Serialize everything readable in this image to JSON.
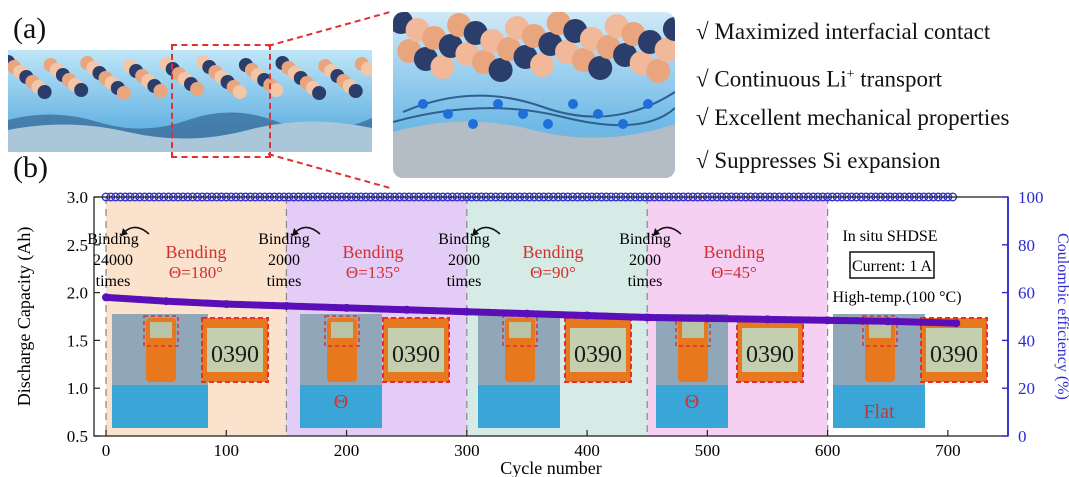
{
  "panel_a": {
    "label": "(a)",
    "bullets": [
      {
        "check": "√",
        "text": "Maximized interfacial contact"
      },
      {
        "check": "√",
        "text": "Continuous Li",
        "sup": "+",
        "tail": " transport"
      },
      {
        "check": "√",
        "text": "Excellent mechanical properties"
      },
      {
        "check": "√",
        "text": "Suppresses Si expansion"
      }
    ]
  },
  "panel_b": {
    "label": "(b)",
    "annotations": {
      "binding": [
        {
          "lines": [
            "Binding",
            "24000",
            "times"
          ]
        },
        {
          "lines": [
            "Binding",
            "2000",
            "times"
          ]
        },
        {
          "lines": [
            "Binding",
            "2000",
            "times"
          ]
        },
        {
          "lines": [
            "Binding",
            "2000",
            "times"
          ]
        }
      ],
      "bending": [
        {
          "title": "Bending",
          "angle": "Θ=180°"
        },
        {
          "title": "Bending",
          "angle": "Θ=135°"
        },
        {
          "title": "Bending",
          "angle": "Θ=90°"
        },
        {
          "title": "Bending",
          "angle": "Θ=45°"
        }
      ],
      "insitu": "In situ SHDSE",
      "current": "Current: 1 A",
      "hightemp": "High-temp.(100 °C)",
      "photo_labels": {
        "theta": "Θ",
        "flat": "Flat"
      },
      "meter_reading": "0390"
    }
  },
  "colors": {
    "discharge": "#5a0fb8",
    "coulombic": "#3232d2",
    "right_axis": "#2a2ad0",
    "bending_text": "#d03030",
    "shade": [
      "#fbe2cc",
      "#e3cdf6",
      "#d6ebe6",
      "#f6d0f3"
    ]
  },
  "chart_data": {
    "type": "scatter",
    "xlabel": "Cycle number",
    "ylabel": "Discharge Capacity (Ah)",
    "y2label": "Coulombic efficiency (%)",
    "xlim": [
      -10,
      750
    ],
    "ylim": [
      0.5,
      3.0
    ],
    "y2lim": [
      0,
      100
    ],
    "xticks": [
      0,
      100,
      200,
      300,
      400,
      500,
      600,
      700
    ],
    "yticks": [
      0.5,
      1.0,
      1.5,
      2.0,
      2.5,
      3.0
    ],
    "y2ticks": [
      0,
      20,
      40,
      60,
      80,
      100
    ],
    "regions": [
      {
        "x0": 0,
        "x1": 150
      },
      {
        "x0": 150,
        "x1": 300
      },
      {
        "x0": 300,
        "x1": 450
      },
      {
        "x0": 450,
        "x1": 600
      }
    ],
    "series": [
      {
        "axis": "left",
        "x": [
          0,
          50,
          100,
          150,
          200,
          250,
          300,
          350,
          400,
          450,
          500,
          550,
          600,
          650,
          707
        ],
        "values": [
          1.95,
          1.91,
          1.88,
          1.86,
          1.84,
          1.82,
          1.8,
          1.78,
          1.76,
          1.74,
          1.73,
          1.72,
          1.71,
          1.7,
          1.68
        ]
      },
      {
        "axis": "right",
        "x": [
          0,
          100,
          200,
          300,
          400,
          500,
          600,
          707
        ],
        "values": [
          100,
          100,
          100,
          100,
          100,
          100,
          100,
          100
        ]
      }
    ]
  }
}
